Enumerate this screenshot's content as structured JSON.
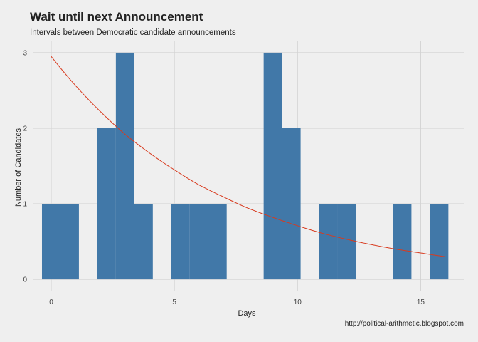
{
  "header": {
    "title": "Wait until next Announcement",
    "subtitle": "Intervals between Democratic candidate announcements"
  },
  "caption": "http://political-arithmetic.blogspot.com",
  "chart_data": {
    "type": "bar",
    "title": "Wait until next Announcement",
    "subtitle": "Intervals between Democratic candidate announcements",
    "xlabel": "Days",
    "ylabel": "Number of Candidates",
    "xlim": [
      -0.75,
      16.75
    ],
    "ylim": [
      -0.15,
      3.15
    ],
    "x_ticks": [
      0,
      5,
      10,
      15
    ],
    "y_ticks": [
      0,
      1,
      2,
      3
    ],
    "grid": true,
    "bar_color": "#4178a8",
    "bins": [
      {
        "x0": -0.375,
        "x1": 0.375,
        "count": 1
      },
      {
        "x0": 0.375,
        "x1": 1.125,
        "count": 1
      },
      {
        "x0": 1.875,
        "x1": 2.625,
        "count": 2
      },
      {
        "x0": 2.625,
        "x1": 3.375,
        "count": 3
      },
      {
        "x0": 3.375,
        "x1": 4.125,
        "count": 1
      },
      {
        "x0": 4.875,
        "x1": 5.625,
        "count": 1
      },
      {
        "x0": 5.625,
        "x1": 6.375,
        "count": 1
      },
      {
        "x0": 6.375,
        "x1": 7.125,
        "count": 1
      },
      {
        "x0": 8.625,
        "x1": 9.375,
        "count": 3
      },
      {
        "x0": 9.375,
        "x1": 10.125,
        "count": 2
      },
      {
        "x0": 10.875,
        "x1": 11.625,
        "count": 1
      },
      {
        "x0": 11.625,
        "x1": 12.375,
        "count": 1
      },
      {
        "x0": 13.875,
        "x1": 14.625,
        "count": 1
      },
      {
        "x0": 15.375,
        "x1": 16.125,
        "count": 1
      }
    ],
    "curve": {
      "type": "exponential-decay-fit",
      "color": "#d83a1e",
      "x_start": 0,
      "x_end": 16,
      "points": [
        [
          0,
          2.95
        ],
        [
          1,
          2.56
        ],
        [
          2,
          2.22
        ],
        [
          3,
          1.92
        ],
        [
          4,
          1.67
        ],
        [
          5,
          1.45
        ],
        [
          6,
          1.25
        ],
        [
          7,
          1.09
        ],
        [
          8,
          0.94
        ],
        [
          9,
          0.82
        ],
        [
          10,
          0.71
        ],
        [
          11,
          0.61
        ],
        [
          12,
          0.53
        ],
        [
          13,
          0.46
        ],
        [
          14,
          0.4
        ],
        [
          15,
          0.35
        ],
        [
          16,
          0.3
        ]
      ]
    }
  }
}
